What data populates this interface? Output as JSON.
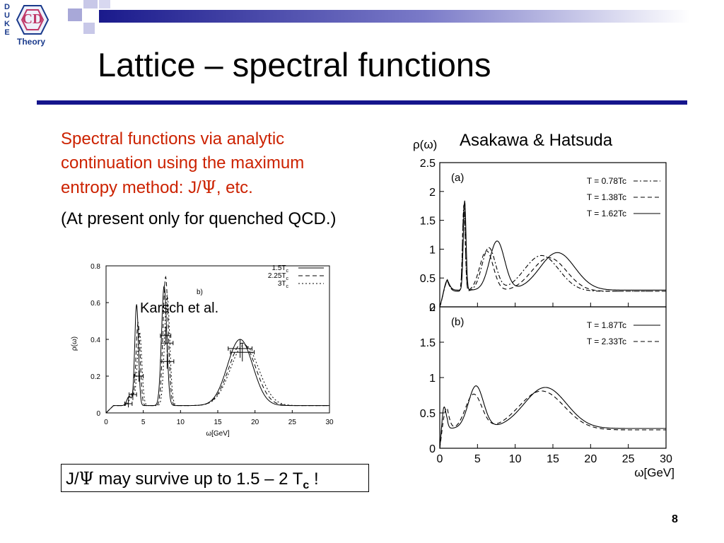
{
  "slide": {
    "logo_letters": [
      "D",
      "U",
      "K",
      "E"
    ],
    "logo_mark": "CD",
    "logo_sub": "Theory",
    "title": "Lattice – spectral functions",
    "text_line1": "Spectral functions via analytic",
    "text_line2": "continuation using the maximum",
    "text_line3_a": "entropy method:  J/",
    "text_line3_psi": "Ψ",
    "text_line3_b": ", etc.",
    "quenched": "(At present only for quenched QCD.)",
    "survive_a": "J/",
    "survive_psi": "Ψ",
    "survive_b": " may survive up to 1.5 – 2 T",
    "survive_sub": "c",
    "survive_c": " !",
    "page_number": "8",
    "colors": {
      "title_rule": "#15158c",
      "accent_text": "#cc2200",
      "logo_blue": "#1a3a8c",
      "logo_pink": "#c03868"
    }
  },
  "chart_data": [
    {
      "type": "line",
      "annotation": "Karsch et al.",
      "panel_label": "b)",
      "xlabel": "ω[GeV]",
      "ylabel": "ρ(ω)",
      "xlim": [
        0,
        30
      ],
      "ylim": [
        0,
        0.8
      ],
      "xticks": [
        "0",
        "5",
        "10",
        "15",
        "20",
        "25",
        "30"
      ],
      "yticks": [
        "0",
        "0.2",
        "0.4",
        "0.6",
        "0.8"
      ],
      "legend_position": "top-right",
      "series": [
        {
          "name": "1.5T_c",
          "label_main": "1.5T",
          "label_sub": "c",
          "dash": "solid",
          "peaks": [
            [
              3.1,
              0.05,
              0.3
            ],
            [
              4.1,
              0.55,
              0.25
            ],
            [
              7.8,
              0.65,
              0.35
            ],
            [
              18.0,
              0.36,
              1.7
            ]
          ],
          "tail": 0.04
        },
        {
          "name": "2.25T_c",
          "label_main": "2.25T",
          "label_sub": "c",
          "dash": "dash",
          "peaks": [
            [
              3.3,
              0.06,
              0.3
            ],
            [
              4.3,
              0.45,
              0.28
            ],
            [
              8.0,
              0.7,
              0.35
            ],
            [
              18.3,
              0.34,
              1.8
            ]
          ],
          "tail": 0.04
        },
        {
          "name": "3T_c",
          "label_main": "3T",
          "label_sub": "c",
          "dash": "dot",
          "peaks": [
            [
              3.5,
              0.07,
              0.3
            ],
            [
              4.5,
              0.4,
              0.3
            ],
            [
              8.2,
              0.6,
              0.35
            ],
            [
              18.6,
              0.33,
              1.9
            ]
          ],
          "tail": 0.04
        }
      ],
      "error_points": [
        {
          "x": 3.0,
          "y": 0.05,
          "xerr": 0.5,
          "yerr": 0.02
        },
        {
          "x": 3.6,
          "y": 0.1,
          "xerr": 0.5,
          "yerr": 0.03
        },
        {
          "x": 4.4,
          "y": 0.2,
          "xerr": 0.6,
          "yerr": 0.03
        },
        {
          "x": 8.0,
          "y": 0.42,
          "xerr": 0.7,
          "yerr": 0.05
        },
        {
          "x": 8.2,
          "y": 0.38,
          "xerr": 0.8,
          "yerr": 0.05
        },
        {
          "x": 8.2,
          "y": 0.28,
          "xerr": 0.9,
          "yerr": 0.04
        },
        {
          "x": 18.0,
          "y": 0.35,
          "xerr": 1.6,
          "yerr": 0.05
        },
        {
          "x": 18.3,
          "y": 0.33,
          "xerr": 1.6,
          "yerr": 0.05
        }
      ]
    },
    {
      "type": "line",
      "title": "Asakawa & Hatsuda",
      "ylabel": "ρ(ω)",
      "xlabel": "ω[GeV]",
      "xlim": [
        0,
        30
      ],
      "xticks": [
        "0",
        "5",
        "10",
        "15",
        "20",
        "25",
        "30"
      ],
      "panels": [
        {
          "label": "(a)",
          "ylim": [
            0,
            2.5
          ],
          "yticks": [
            "0",
            "0.5",
            "1",
            "1.5",
            "2",
            "2.5"
          ],
          "legend_position": "top-right",
          "series": [
            {
              "name": "T = 0.78Tc",
              "dash": "dashdot",
              "peaks": [
                [
                  3.2,
                  1.5,
                  0.18
                ],
                [
                  6.5,
                  0.75,
                  0.9
                ],
                [
                  13.5,
                  0.62,
                  2.3
                ]
              ],
              "lowbump": [
                0.6,
                0.25,
                0.5
              ],
              "tail": 0.27
            },
            {
              "name": "T = 1.38Tc",
              "dash": "dash",
              "peaks": [
                [
                  3.2,
                  1.45,
                  0.18
                ],
                [
                  6.2,
                  0.7,
                  0.9
                ],
                [
                  14.5,
                  0.58,
                  2.3
                ]
              ],
              "lowbump": [
                0.6,
                0.25,
                0.5
              ],
              "tail": 0.27
            },
            {
              "name": "T = 1.62Tc",
              "dash": "solid",
              "peaks": [
                [
                  3.3,
                  1.55,
                  0.18
                ],
                [
                  7.6,
                  0.85,
                  1.0
                ],
                [
                  15.6,
                  0.65,
                  2.3
                ]
              ],
              "lowbump": [
                0.6,
                0.25,
                0.5
              ],
              "tail": 0.29
            }
          ]
        },
        {
          "label": "(b)",
          "ylim": [
            0,
            2.0
          ],
          "yticks": [
            "0",
            "0.5",
            "1",
            "1.5",
            "2"
          ],
          "legend_position": "top-right",
          "series": [
            {
              "name": "T = 1.87Tc",
              "dash": "solid",
              "peaks": [
                [
                  4.8,
                  0.6,
                  1.0
                ],
                [
                  14.0,
                  0.58,
                  2.8
                ]
              ],
              "lowbump": [
                0.3,
                1.0,
                0.35
              ],
              "tail": 0.28
            },
            {
              "name": "T = 2.33Tc",
              "dash": "dash",
              "peaks": [
                [
                  4.5,
                  0.5,
                  1.1
                ],
                [
                  13.5,
                  0.55,
                  3.0
                ]
              ],
              "lowbump": [
                0.3,
                0.6,
                0.6
              ],
              "tail": 0.26
            }
          ]
        }
      ]
    }
  ]
}
